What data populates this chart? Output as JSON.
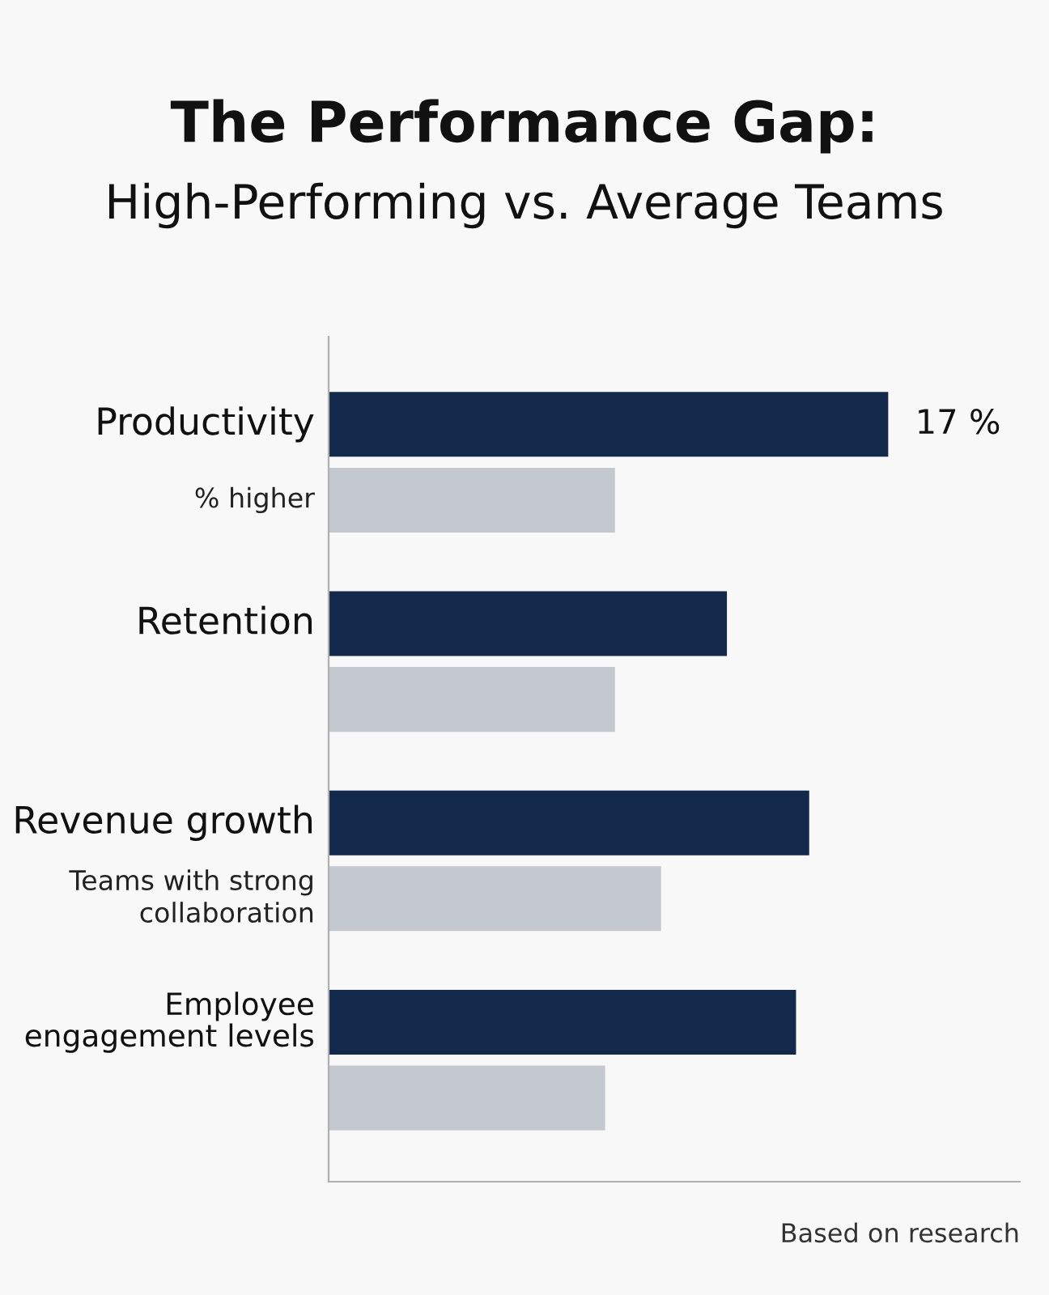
{
  "chart_data": {
    "type": "bar",
    "orientation": "horizontal",
    "xlim": [
      0,
      21
    ],
    "title": "The Performance Gap:",
    "subtitle": "High-Performing vs. Average Teams",
    "categories": [
      "Productivity",
      "Retention",
      "Revenue growth",
      "Employee\nengagement levels"
    ],
    "series": [
      {
        "color": "#13294b",
        "values": [
          17,
          12.1,
          14.6,
          14.2
        ],
        "value_labels": [
          "17 %",
          null,
          null,
          null
        ]
      },
      {
        "color": "#c4c8cf",
        "values": [
          8.7,
          8.7,
          10.1,
          8.4
        ]
      }
    ],
    "annotations": [
      "% higher",
      "Teams with strong\ncollaboration",
      "Based on research"
    ],
    "legend": false
  }
}
